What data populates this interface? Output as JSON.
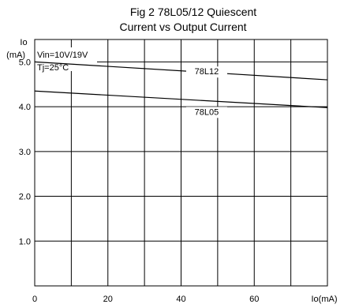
{
  "chart_data": {
    "type": "line",
    "title_line1": "Fig 2 78L05/12 Quiescent",
    "title_line2": "Current vs Output Current",
    "ylabel_line1": "Io",
    "ylabel_line2": "(mA)",
    "xlabel": "Io(mA)",
    "conditions": [
      "Vin=10V/19V",
      "Tj=25°C"
    ],
    "xlim": [
      0,
      80
    ],
    "ylim": [
      0,
      5.5
    ],
    "x_ticks": [
      0,
      20,
      40,
      60
    ],
    "x_tick_labels": [
      "0",
      "20",
      "40",
      "60"
    ],
    "y_ticks": [
      1.0,
      2.0,
      3.0,
      4.0,
      5.0
    ],
    "y_tick_labels": [
      "1.0",
      "2.0",
      "3.0",
      "4.0",
      "5.0"
    ],
    "grid": true,
    "series": [
      {
        "name": "78L12",
        "x": [
          0,
          80
        ],
        "y": [
          5.0,
          4.6
        ]
      },
      {
        "name": "78L05",
        "x": [
          0,
          80
        ],
        "y": [
          4.35,
          3.98
        ]
      }
    ],
    "series_label_at_x": [
      47,
      47
    ],
    "series_label_y": [
      4.72,
      3.82
    ]
  }
}
